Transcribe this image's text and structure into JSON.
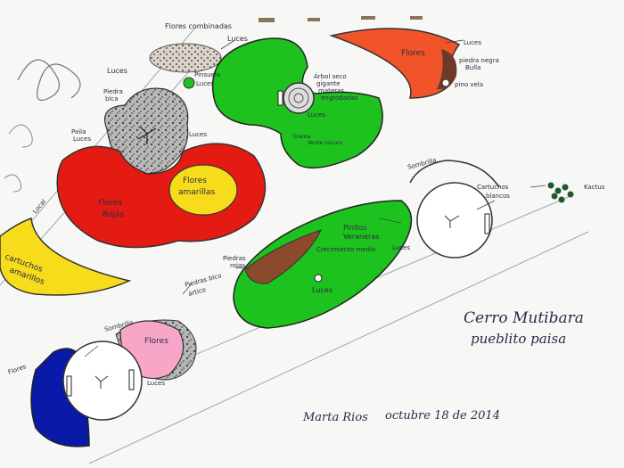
{
  "labels": {
    "flores_combinadas": "Flores combinadas",
    "luces_top": "Luces",
    "luces_left": "Luces",
    "pinsuela": "Pinsuela",
    "luces_pinsuela": "Luces",
    "arbol_seco": "Árbol seco",
    "gigante": "gigante",
    "materas": "materas",
    "engrodadas": "engrodadas",
    "luces_arbol": "Luces",
    "flores_orange": "Flores",
    "luces_orange": "Luces",
    "piedra_negra": "piedra negra",
    "bulla": "Bulla",
    "pino_vela": "pino vela",
    "piedra_blca": "Piedra",
    "piedra_blca2": "blca",
    "paila": "Paila",
    "luces_paila": "Luces",
    "luces_gray": "Luces",
    "flores_amarillas_1": "Flores",
    "flores_amarillas_2": "amarillas",
    "flores_rojas_1": "Flores",
    "flores_rojas_2": "Rojas",
    "green_text_1": "Grama",
    "green_text_2": "Verde oscuro",
    "local": "Local",
    "cartuchos_1": "cartuchos",
    "cartuchos_2": "amarillos",
    "sombrilla_right": "Sombrilla",
    "cartuchos_blancos_1": "Cartuchos",
    "cartuchos_blancos_2": "blancos",
    "kactus": "Kactus",
    "pinitos": "Pinitos",
    "veraneras": "Veraneras",
    "crecimiento": "Crecimiento medio",
    "piedras_rojas_1": "Piedras",
    "piedras_rojas_2": "rojas",
    "luces_green2": "Luces",
    "luces_circle": "Luces",
    "sombrilla_left": "Sombrilla",
    "flores_pink": "Flores",
    "piedras_blco_1": "Piedras blco",
    "piedras_blco_2": "ártico",
    "flores_blue": "Flores",
    "luces_bottom": "Luces",
    "cerro": "Cerro Mutibara",
    "pueblito": "pueblito paisa",
    "signature": "Marta Rios",
    "date": "octubre 18 de 2014"
  },
  "colors": {
    "red": "#e41b12",
    "yellow": "#f7dc1c",
    "green": "#1ec21e",
    "orange": "#f2542a",
    "pink": "#f7a6c8",
    "blue": "#0a1aa8",
    "gray": "#9c9c9c",
    "brown": "#8b4a2b",
    "ink": "#2b2b4a"
  }
}
